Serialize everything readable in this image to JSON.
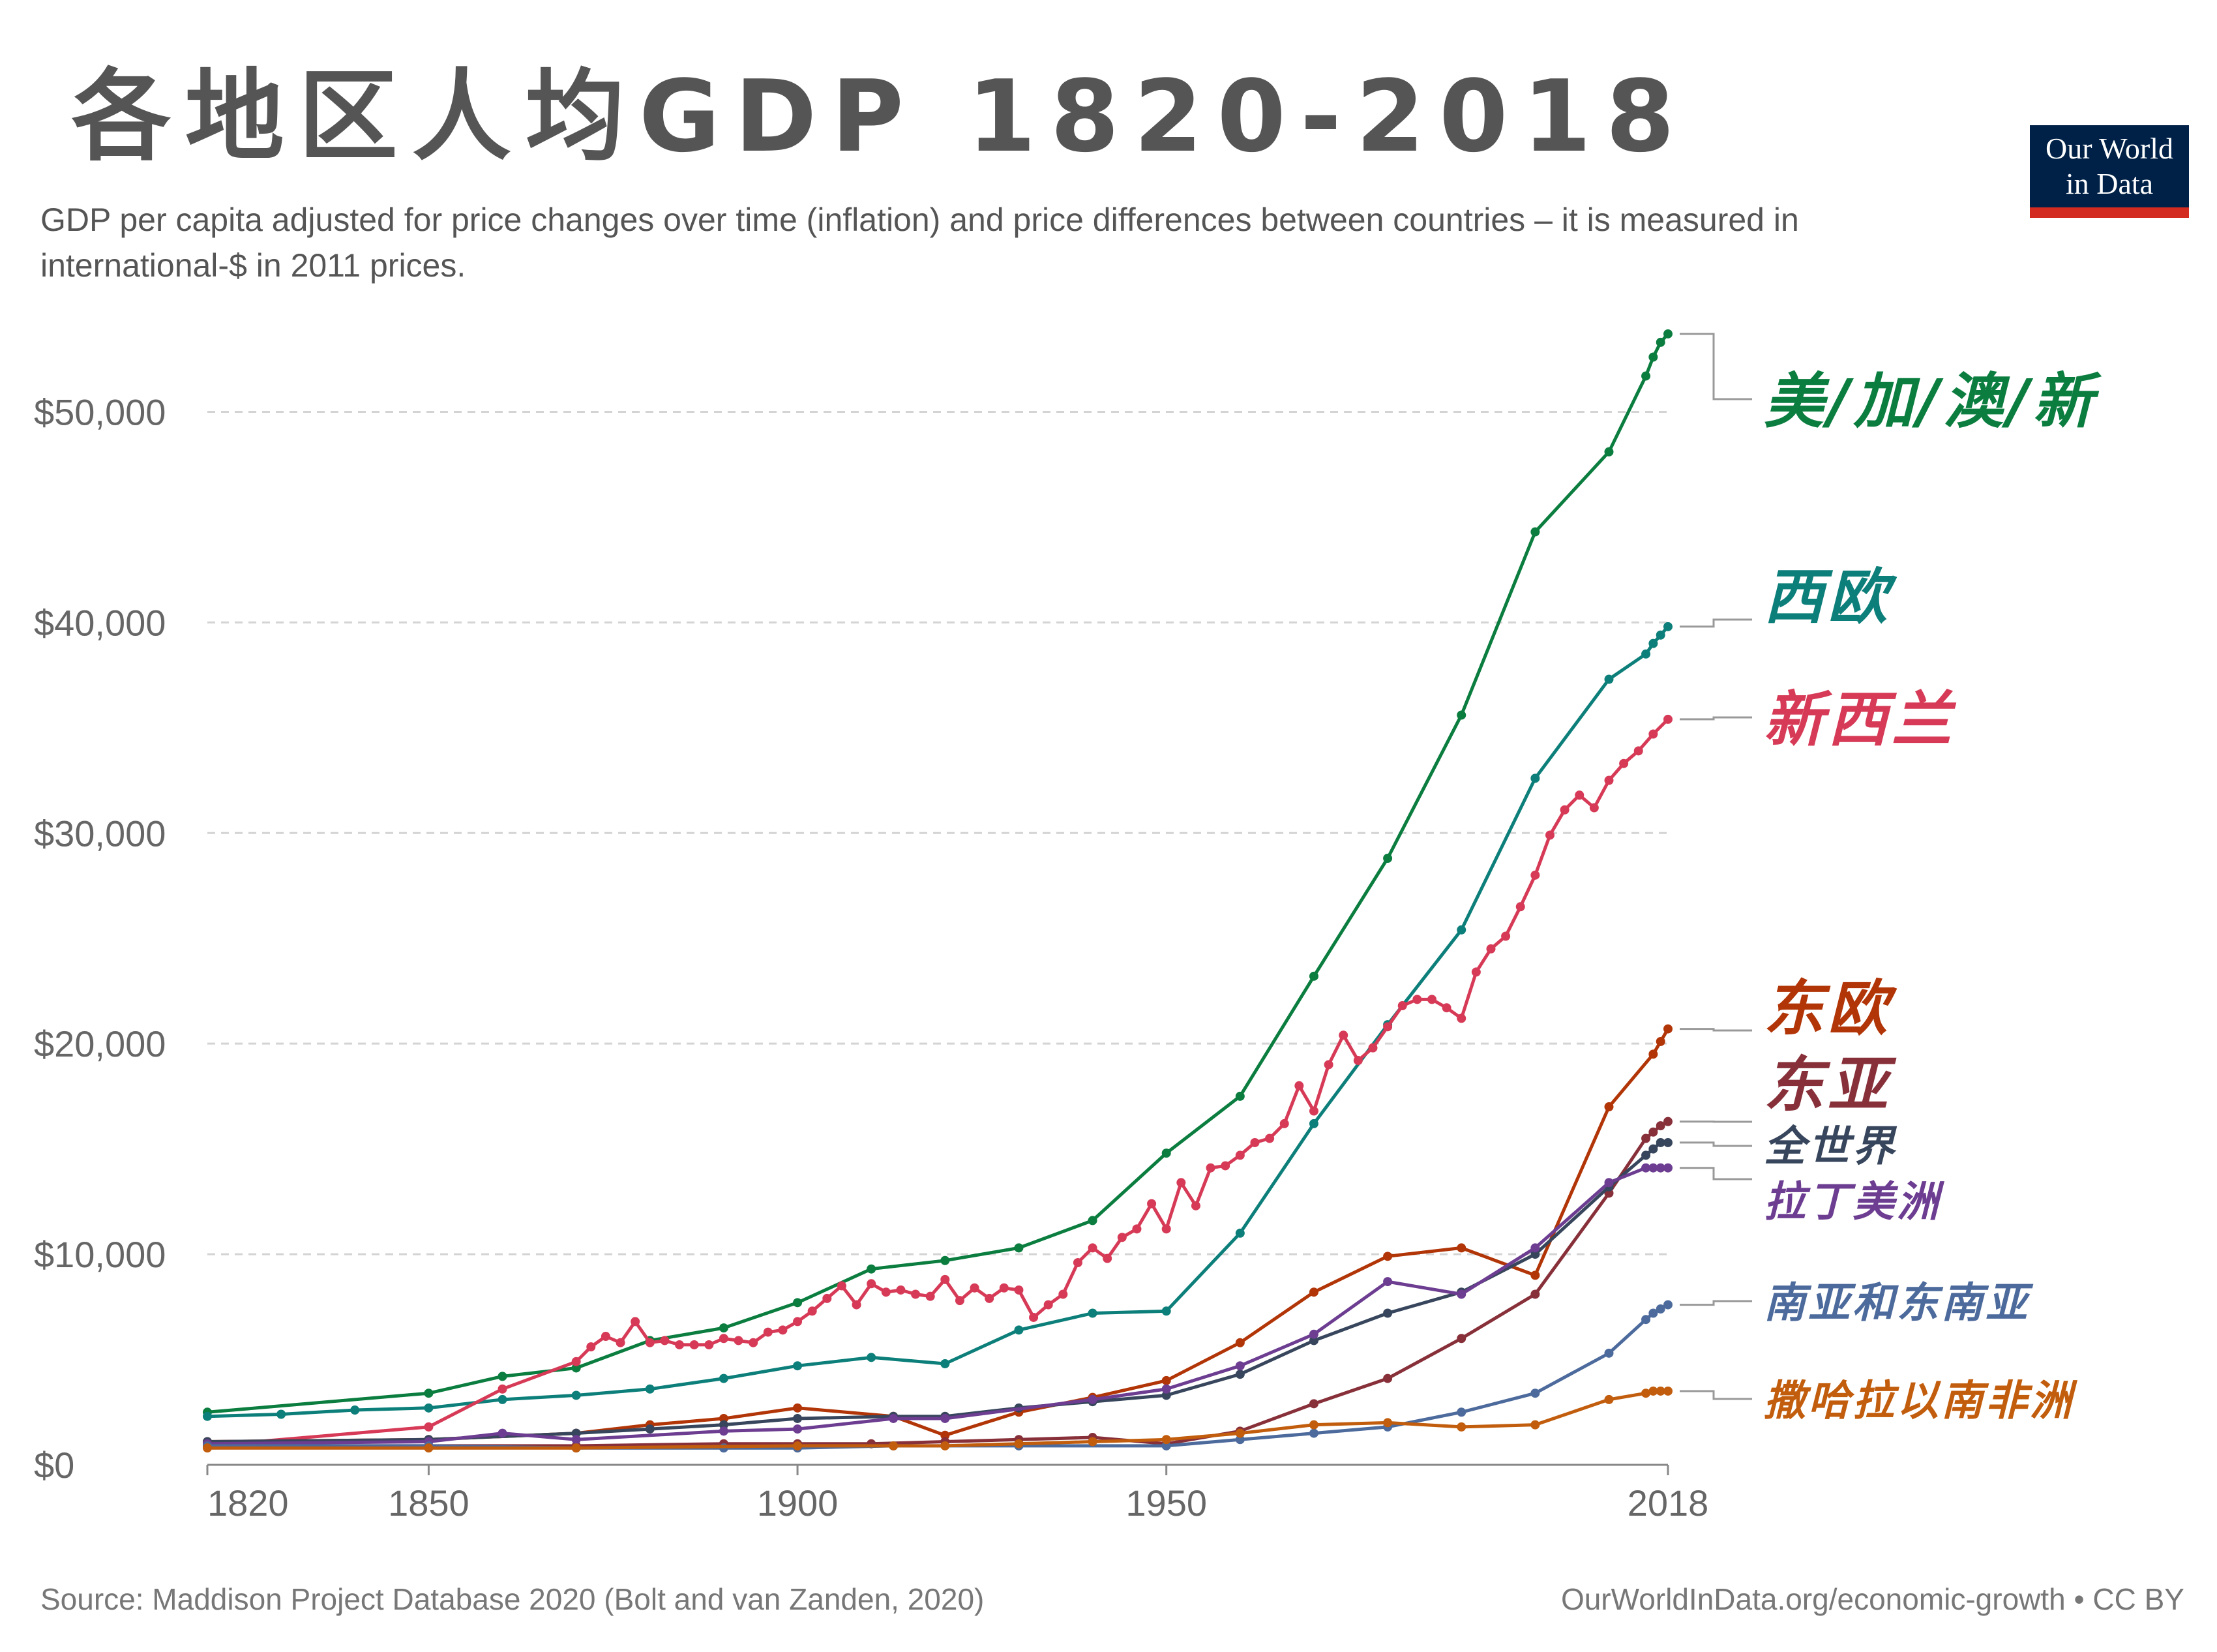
{
  "title": "各地区人均GDP 1820-2018",
  "subtitle": "GDP per capita adjusted for price changes over time (inflation) and price differences between countries – it is measured in international-$ in 2011 prices.",
  "logo": {
    "line1": "Our World",
    "line2": "in Data"
  },
  "footer": {
    "source": "Source: Maddison Project Database 2020 (Bolt and van Zanden, 2020)",
    "url": "OurWorldInData.org/economic-growth • CC BY"
  },
  "chart_data": {
    "type": "line",
    "title": "各地区人均GDP 1820-2018",
    "xlim": [
      1820,
      2018
    ],
    "ylim": [
      0,
      55000
    ],
    "x_ticks": [
      {
        "value": 1820,
        "label": "1820"
      },
      {
        "value": 1850,
        "label": "1850"
      },
      {
        "value": 1900,
        "label": "1900"
      },
      {
        "value": 1950,
        "label": "1950"
      },
      {
        "value": 2018,
        "label": "2018"
      }
    ],
    "y_ticks": [
      {
        "value": 0,
        "label": "$0"
      },
      {
        "value": 10000,
        "label": "$10,000"
      },
      {
        "value": 20000,
        "label": "$20,000"
      },
      {
        "value": 30000,
        "label": "$30,000"
      },
      {
        "value": 40000,
        "label": "$40,000"
      },
      {
        "value": 50000,
        "label": "$50,000"
      }
    ],
    "grid": true,
    "series": [
      {
        "name": "美/加/澳/新",
        "color": "#0a7d3f",
        "label_size": 92,
        "x": [
          1820,
          1850,
          1860,
          1870,
          1880,
          1890,
          1900,
          1910,
          1920,
          1930,
          1940,
          1950,
          1960,
          1970,
          1980,
          1990,
          2000,
          2010,
          2015,
          2016,
          2017,
          2018
        ],
        "y": [
          2500,
          3400,
          4200,
          4600,
          5900,
          6500,
          7700,
          9300,
          9700,
          10300,
          11600,
          14800,
          17500,
          23200,
          28800,
          35600,
          44300,
          48100,
          51700,
          52600,
          53300,
          53700
        ]
      },
      {
        "name": "西欧",
        "color": "#0d7f7a",
        "label_size": 92,
        "x": [
          1820,
          1830,
          1840,
          1850,
          1860,
          1870,
          1880,
          1890,
          1900,
          1910,
          1920,
          1930,
          1940,
          1950,
          1960,
          1970,
          1980,
          1990,
          2000,
          2010,
          2015,
          2016,
          2017,
          2018
        ],
        "y": [
          2300,
          2400,
          2600,
          2700,
          3100,
          3300,
          3600,
          4100,
          4700,
          5100,
          4800,
          6400,
          7200,
          7300,
          11000,
          16200,
          20900,
          25400,
          32600,
          37300,
          38500,
          39000,
          39400,
          39800
        ]
      },
      {
        "name": "新西兰",
        "color": "#d63a56",
        "label_size": 92,
        "x": [
          1820,
          1850,
          1860,
          1870,
          1872,
          1874,
          1876,
          1878,
          1880,
          1882,
          1884,
          1886,
          1888,
          1890,
          1892,
          1894,
          1896,
          1898,
          1900,
          1902,
          1904,
          1906,
          1908,
          1910,
          1912,
          1914,
          1916,
          1918,
          1920,
          1922,
          1924,
          1926,
          1928,
          1930,
          1932,
          1934,
          1936,
          1938,
          1940,
          1942,
          1944,
          1946,
          1948,
          1950,
          1952,
          1954,
          1956,
          1958,
          1960,
          1962,
          1964,
          1966,
          1968,
          1970,
          1972,
          1974,
          1976,
          1978,
          1980,
          1982,
          1984,
          1986,
          1988,
          1990,
          1992,
          1994,
          1996,
          1998,
          2000,
          2002,
          2004,
          2006,
          2008,
          2010,
          2012,
          2014,
          2016,
          2018
        ],
        "y": [
          900,
          1800,
          3600,
          4900,
          5600,
          6100,
          5800,
          6800,
          5800,
          5900,
          5700,
          5700,
          5700,
          6000,
          5900,
          5800,
          6300,
          6400,
          6800,
          7300,
          7900,
          8500,
          7600,
          8600,
          8200,
          8300,
          8100,
          8000,
          8800,
          7800,
          8400,
          7900,
          8400,
          8300,
          7000,
          7600,
          8100,
          9600,
          10300,
          9800,
          10800,
          11200,
          12400,
          11200,
          13400,
          12300,
          14100,
          14200,
          14700,
          15300,
          15500,
          16200,
          18000,
          16800,
          19000,
          20400,
          19200,
          19800,
          20800,
          21800,
          22100,
          22100,
          21700,
          21200,
          23400,
          24500,
          25100,
          26500,
          28000,
          29900,
          31100,
          31800,
          31200,
          32500,
          33300,
          33900,
          34700,
          35400
        ]
      },
      {
        "name": "东欧",
        "color": "#b13507",
        "label_size": 92,
        "x": [
          1820,
          1850,
          1870,
          1880,
          1890,
          1900,
          1913,
          1920,
          1930,
          1940,
          1950,
          1960,
          1970,
          1980,
          1990,
          2000,
          2010,
          2016,
          2017,
          2018
        ],
        "y": [
          1100,
          1200,
          1500,
          1900,
          2200,
          2700,
          2300,
          1400,
          2500,
          3200,
          4000,
          5800,
          8200,
          9900,
          10300,
          9000,
          17000,
          19500,
          20100,
          20700
        ]
      },
      {
        "name": "东亚",
        "color": "#883039",
        "label_size": 92,
        "x": [
          1820,
          1850,
          1870,
          1890,
          1900,
          1910,
          1920,
          1930,
          1940,
          1950,
          1960,
          1970,
          1980,
          1990,
          2000,
          2010,
          2015,
          2016,
          2017,
          2018
        ],
        "y": [
          900,
          900,
          900,
          1000,
          1000,
          1000,
          1100,
          1200,
          1300,
          1000,
          1600,
          2900,
          4100,
          6000,
          8100,
          12900,
          15500,
          15800,
          16100,
          16300
        ]
      },
      {
        "name": "全世界",
        "color": "#37465c",
        "label_size": 64,
        "x": [
          1820,
          1850,
          1870,
          1880,
          1890,
          1900,
          1913,
          1920,
          1930,
          1940,
          1950,
          1960,
          1970,
          1980,
          1990,
          2000,
          2010,
          2015,
          2016,
          2017,
          2018
        ],
        "y": [
          1100,
          1200,
          1500,
          1700,
          1900,
          2200,
          2300,
          2300,
          2700,
          3000,
          3300,
          4300,
          5900,
          7200,
          8200,
          10000,
          13200,
          14700,
          15000,
          15300,
          15300
        ]
      },
      {
        "name": "拉丁美洲",
        "color": "#6c3d91",
        "label_size": 64,
        "x": [
          1820,
          1850,
          1860,
          1870,
          1890,
          1900,
          1913,
          1920,
          1940,
          1950,
          1960,
          1970,
          1980,
          1990,
          2000,
          2010,
          2015,
          2016,
          2017,
          2018
        ],
        "y": [
          1000,
          1100,
          1500,
          1200,
          1600,
          1700,
          2200,
          2200,
          3100,
          3600,
          4700,
          6200,
          8700,
          8100,
          10300,
          13400,
          14100,
          14100,
          14100,
          14100
        ]
      },
      {
        "name": "南亚和东南亚",
        "color": "#4c6a9c",
        "label_size": 64,
        "x": [
          1820,
          1850,
          1870,
          1890,
          1900,
          1913,
          1930,
          1950,
          1960,
          1970,
          1980,
          1990,
          2000,
          2010,
          2015,
          2016,
          2017,
          2018
        ],
        "y": [
          900,
          900,
          800,
          800,
          800,
          900,
          900,
          900,
          1200,
          1500,
          1800,
          2500,
          3400,
          5300,
          6900,
          7200,
          7400,
          7600
        ]
      },
      {
        "name": "撒哈拉以南非洲",
        "color": "#c15d0d",
        "label_size": 64,
        "x": [
          1820,
          1850,
          1870,
          1900,
          1913,
          1920,
          1930,
          1940,
          1950,
          1960,
          1970,
          1980,
          1990,
          2000,
          2010,
          2015,
          2016,
          2017,
          2018
        ],
        "y": [
          800,
          800,
          800,
          900,
          900,
          900,
          1000,
          1100,
          1200,
          1500,
          1900,
          2000,
          1800,
          1900,
          3100,
          3400,
          3500,
          3500,
          3500
        ]
      }
    ]
  }
}
